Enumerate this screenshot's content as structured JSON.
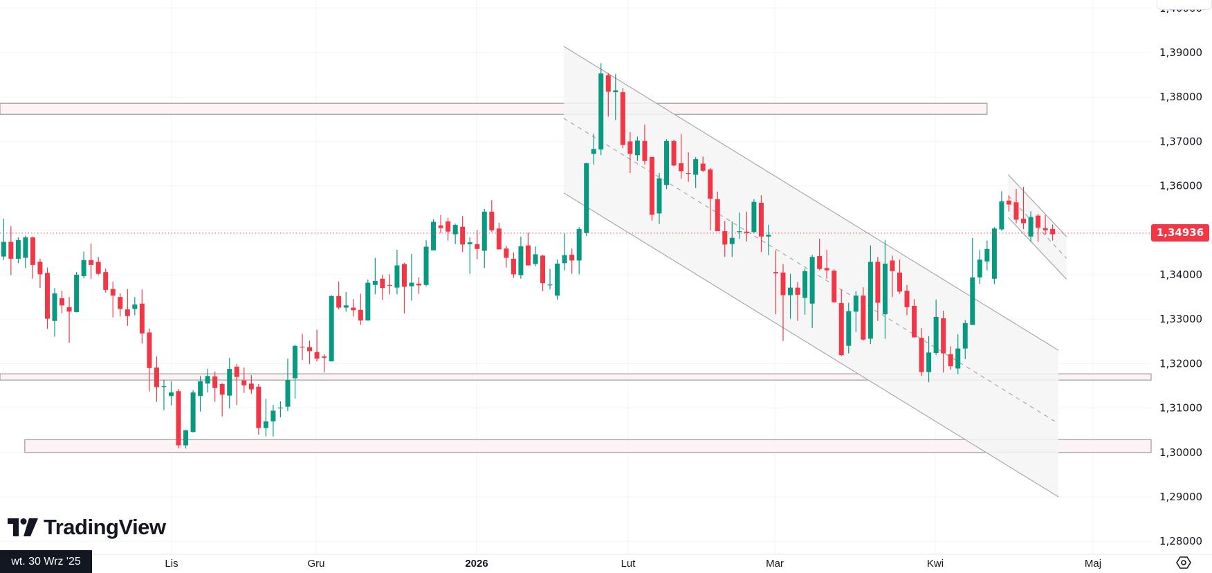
{
  "chart_data": {
    "type": "candlestick",
    "title": "",
    "colors": {
      "up": "#089981",
      "down": "#f23645",
      "grid": "#f0f3fa",
      "zone_fill": "#fdf0f1",
      "zone_border": "#9b9b9b",
      "channel_fill": "#f5f5f5",
      "channel_line": "#a8a8a8"
    },
    "ylim": [
      1.28,
      1.4
    ],
    "y_ticks": [
      "1,40000",
      "1,39000",
      "1,38000",
      "1,37000",
      "1,36000",
      "1,35000",
      "1,34000",
      "1,33000",
      "1,32000",
      "1,31000",
      "1,30000",
      "1,29000",
      "1,28000"
    ],
    "y_tick_values": [
      1.4,
      1.39,
      1.38,
      1.37,
      1.36,
      1.35,
      1.34,
      1.33,
      1.32,
      1.31,
      1.3,
      1.29,
      1.28
    ],
    "x_ticks": [
      "Lis",
      "Gru",
      "2026",
      "Lut",
      "Mar",
      "Kwi",
      "Maj"
    ],
    "crosshair_date": "wt. 30 Wrz '25",
    "last_price": 1.34936,
    "last_price_label": "1,34936",
    "candles_ohlc": [
      [
        1.3441,
        1.3526,
        1.3433,
        1.3474
      ],
      [
        1.3474,
        1.3509,
        1.3399,
        1.3436
      ],
      [
        1.3436,
        1.3484,
        1.3426,
        1.3478
      ],
      [
        1.3438,
        1.3488,
        1.3415,
        1.3484
      ],
      [
        1.3484,
        1.3486,
        1.3391,
        1.3422
      ],
      [
        1.3429,
        1.3436,
        1.337,
        1.3401
      ],
      [
        1.3404,
        1.3416,
        1.3278,
        1.3301
      ],
      [
        1.3296,
        1.337,
        1.3261,
        1.3358
      ],
      [
        1.3347,
        1.3364,
        1.3313,
        1.3331
      ],
      [
        1.3327,
        1.335,
        1.3247,
        1.3317
      ],
      [
        1.3316,
        1.3406,
        1.3315,
        1.34
      ],
      [
        1.3397,
        1.3452,
        1.3392,
        1.3433
      ],
      [
        1.3433,
        1.347,
        1.339,
        1.3422
      ],
      [
        1.3429,
        1.344,
        1.3399,
        1.3402
      ],
      [
        1.3406,
        1.3414,
        1.336,
        1.3366
      ],
      [
        1.3368,
        1.3384,
        1.3304,
        1.3353
      ],
      [
        1.335,
        1.3358,
        1.3306,
        1.3323
      ],
      [
        1.3322,
        1.3368,
        1.3285,
        1.3307
      ],
      [
        1.3323,
        1.335,
        1.3309,
        1.3333
      ],
      [
        1.3335,
        1.3367,
        1.3245,
        1.3268
      ],
      [
        1.327,
        1.3279,
        1.3137,
        1.319
      ],
      [
        1.3191,
        1.3216,
        1.3114,
        1.3147
      ],
      [
        1.3148,
        1.3163,
        1.3095,
        1.3149
      ],
      [
        1.3127,
        1.316,
        1.3106,
        1.3135
      ],
      [
        1.3138,
        1.3143,
        1.3009,
        1.3016
      ],
      [
        1.3016,
        1.3051,
        1.3009,
        1.305
      ],
      [
        1.3046,
        1.314,
        1.3045,
        1.3135
      ],
      [
        1.3127,
        1.3172,
        1.3092,
        1.316
      ],
      [
        1.3155,
        1.3188,
        1.3135,
        1.3172
      ],
      [
        1.3171,
        1.3182,
        1.3114,
        1.3145
      ],
      [
        1.3154,
        1.3156,
        1.3081,
        1.313
      ],
      [
        1.3128,
        1.3213,
        1.3099,
        1.3188
      ],
      [
        1.3193,
        1.3199,
        1.3107,
        1.317
      ],
      [
        1.3162,
        1.3191,
        1.3134,
        1.3151
      ],
      [
        1.3155,
        1.3174,
        1.3132,
        1.3142
      ],
      [
        1.3148,
        1.3154,
        1.304,
        1.3055
      ],
      [
        1.3055,
        1.3121,
        1.3036,
        1.307
      ],
      [
        1.307,
        1.3107,
        1.3036,
        1.3094
      ],
      [
        1.31,
        1.3115,
        1.3079,
        1.3101
      ],
      [
        1.3103,
        1.3211,
        1.3093,
        1.3163
      ],
      [
        1.3167,
        1.3242,
        1.3121,
        1.324
      ],
      [
        1.3238,
        1.3267,
        1.3208,
        1.3237
      ],
      [
        1.3237,
        1.3252,
        1.3199,
        1.3228
      ],
      [
        1.3226,
        1.3276,
        1.3205,
        1.3211
      ],
      [
        1.3216,
        1.3221,
        1.318,
        1.3213
      ],
      [
        1.3205,
        1.3354,
        1.3205,
        1.3352
      ],
      [
        1.3352,
        1.3385,
        1.3322,
        1.3326
      ],
      [
        1.3326,
        1.3361,
        1.3317,
        1.3331
      ],
      [
        1.3326,
        1.3345,
        1.3306,
        1.332
      ],
      [
        1.3321,
        1.3357,
        1.3287,
        1.3297
      ],
      [
        1.3297,
        1.3389,
        1.3297,
        1.3382
      ],
      [
        1.3377,
        1.3438,
        1.3356,
        1.3386
      ],
      [
        1.3391,
        1.34,
        1.3343,
        1.337
      ],
      [
        1.3377,
        1.3401,
        1.3356,
        1.3376
      ],
      [
        1.3371,
        1.3456,
        1.3356,
        1.3421
      ],
      [
        1.3424,
        1.3427,
        1.3313,
        1.3373
      ],
      [
        1.3374,
        1.3447,
        1.3342,
        1.3382
      ],
      [
        1.338,
        1.3394,
        1.3357,
        1.3376
      ],
      [
        1.3377,
        1.3478,
        1.3374,
        1.3463
      ],
      [
        1.3455,
        1.3525,
        1.3455,
        1.3519
      ],
      [
        1.3511,
        1.3534,
        1.3493,
        1.3505
      ],
      [
        1.352,
        1.3528,
        1.3477,
        1.3497
      ],
      [
        1.3491,
        1.3515,
        1.3469,
        1.3512
      ],
      [
        1.3508,
        1.3532,
        1.3451,
        1.3468
      ],
      [
        1.3469,
        1.3484,
        1.3402,
        1.3473
      ],
      [
        1.3469,
        1.3501,
        1.3435,
        1.3458
      ],
      [
        1.3454,
        1.3548,
        1.3415,
        1.3542
      ],
      [
        1.3542,
        1.3568,
        1.3496,
        1.35
      ],
      [
        1.3504,
        1.3517,
        1.3457,
        1.3457
      ],
      [
        1.3459,
        1.3465,
        1.3416,
        1.3438
      ],
      [
        1.3436,
        1.345,
        1.3393,
        1.3401
      ],
      [
        1.3399,
        1.3486,
        1.3391,
        1.3464
      ],
      [
        1.3466,
        1.3495,
        1.3421,
        1.3421
      ],
      [
        1.3424,
        1.3464,
        1.3419,
        1.3446
      ],
      [
        1.3443,
        1.3445,
        1.3363,
        1.3381
      ],
      [
        1.3377,
        1.3413,
        1.3367,
        1.3378
      ],
      [
        1.3353,
        1.3434,
        1.3344,
        1.3425
      ],
      [
        1.3426,
        1.3493,
        1.341,
        1.3444
      ],
      [
        1.3445,
        1.3459,
        1.3402,
        1.3432
      ],
      [
        1.3432,
        1.3507,
        1.3401,
        1.3503
      ],
      [
        1.3494,
        1.3652,
        1.3487,
        1.3651
      ],
      [
        1.3672,
        1.3717,
        1.3648,
        1.3683
      ],
      [
        1.3682,
        1.3876,
        1.3669,
        1.3853
      ],
      [
        1.3849,
        1.3854,
        1.3756,
        1.3812
      ],
      [
        1.3811,
        1.3852,
        1.3748,
        1.3815
      ],
      [
        1.3811,
        1.382,
        1.3685,
        1.3692
      ],
      [
        1.37,
        1.3721,
        1.3629,
        1.3672
      ],
      [
        1.3669,
        1.3711,
        1.3656,
        1.3702
      ],
      [
        1.3701,
        1.3738,
        1.3648,
        1.3656
      ],
      [
        1.3665,
        1.3665,
        1.3522,
        1.3535
      ],
      [
        1.3538,
        1.3629,
        1.3514,
        1.3617
      ],
      [
        1.3602,
        1.3705,
        1.3593,
        1.3701
      ],
      [
        1.3701,
        1.3704,
        1.3644,
        1.3646
      ],
      [
        1.3651,
        1.3717,
        1.3616,
        1.3633
      ],
      [
        1.3629,
        1.3676,
        1.3609,
        1.3628
      ],
      [
        1.3625,
        1.3665,
        1.3595,
        1.366
      ],
      [
        1.365,
        1.3666,
        1.3631,
        1.3634
      ],
      [
        1.3637,
        1.364,
        1.35,
        1.3571
      ],
      [
        1.357,
        1.3587,
        1.3498,
        1.3498
      ],
      [
        1.3498,
        1.3521,
        1.344,
        1.3468
      ],
      [
        1.3469,
        1.352,
        1.344,
        1.3483
      ],
      [
        1.3497,
        1.354,
        1.3481,
        1.3498
      ],
      [
        1.3497,
        1.3542,
        1.3475,
        1.3494
      ],
      [
        1.3496,
        1.357,
        1.3494,
        1.3564
      ],
      [
        1.3562,
        1.3579,
        1.3451,
        1.3486
      ],
      [
        1.3486,
        1.3512,
        1.3444,
        1.349
      ],
      [
        1.3406,
        1.3455,
        1.3311,
        1.3403
      ],
      [
        1.3405,
        1.3424,
        1.3251,
        1.3354
      ],
      [
        1.3354,
        1.3402,
        1.3301,
        1.3371
      ],
      [
        1.3371,
        1.3384,
        1.3296,
        1.3355
      ],
      [
        1.3348,
        1.3414,
        1.331,
        1.3408
      ],
      [
        1.3335,
        1.3445,
        1.328,
        1.344
      ],
      [
        1.3442,
        1.3481,
        1.341,
        1.3413
      ],
      [
        1.3415,
        1.3456,
        1.3391,
        1.341
      ],
      [
        1.3409,
        1.3412,
        1.3337,
        1.3338
      ],
      [
        1.3336,
        1.3367,
        1.3217,
        1.3219
      ],
      [
        1.324,
        1.3337,
        1.3223,
        1.3318
      ],
      [
        1.3317,
        1.3363,
        1.3271,
        1.3353
      ],
      [
        1.3353,
        1.3372,
        1.3252,
        1.3254
      ],
      [
        1.3256,
        1.3466,
        1.3244,
        1.3429
      ],
      [
        1.3429,
        1.344,
        1.3296,
        1.3337
      ],
      [
        1.3311,
        1.3478,
        1.3256,
        1.3425
      ],
      [
        1.3432,
        1.3443,
        1.335,
        1.3408
      ],
      [
        1.3405,
        1.3434,
        1.3357,
        1.3362
      ],
      [
        1.3364,
        1.3377,
        1.3309,
        1.3327
      ],
      [
        1.333,
        1.3345,
        1.3259,
        1.3259
      ],
      [
        1.3258,
        1.328,
        1.3172,
        1.3181
      ],
      [
        1.3181,
        1.3262,
        1.3158,
        1.3225
      ],
      [
        1.3224,
        1.3344,
        1.3219,
        1.3305
      ],
      [
        1.3302,
        1.3319,
        1.318,
        1.3223
      ],
      [
        1.3221,
        1.3239,
        1.3186,
        1.3194
      ],
      [
        1.3189,
        1.3266,
        1.3176,
        1.3234
      ],
      [
        1.3234,
        1.3298,
        1.321,
        1.3291
      ],
      [
        1.3287,
        1.3483,
        1.3287,
        1.3394
      ],
      [
        1.3394,
        1.3456,
        1.3379,
        1.3434
      ],
      [
        1.343,
        1.3477,
        1.341,
        1.3458
      ],
      [
        1.3391,
        1.3507,
        1.3379,
        1.3504
      ],
      [
        1.3502,
        1.3588,
        1.3499,
        1.3565
      ],
      [
        1.3567,
        1.3578,
        1.3542,
        1.3558
      ],
      [
        1.3563,
        1.3593,
        1.3516,
        1.3524
      ],
      [
        1.3526,
        1.3598,
        1.3503,
        1.3516
      ],
      [
        1.3486,
        1.3543,
        1.3474,
        1.353
      ],
      [
        1.3533,
        1.3537,
        1.3474,
        1.3506
      ],
      [
        1.3505,
        1.3534,
        1.349,
        1.35
      ],
      [
        1.3503,
        1.3513,
        1.3477,
        1.3491
      ]
    ],
    "zones": [
      {
        "name": "resistance-zone",
        "price_top": 1.3786,
        "price_bottom": 1.3761,
        "from_bar": -1,
        "to_bar": 135
      },
      {
        "name": "support-zone-1317",
        "price_top": 1.3177,
        "price_bottom": 1.3163,
        "from_bar": -1,
        "to_bar": null
      },
      {
        "name": "support-zone-1300",
        "price_top": 1.3029,
        "price_bottom": 1.3,
        "from_bar": 2.9,
        "to_bar": null
      }
    ],
    "channels": [
      {
        "name": "main-regression-channel",
        "from_bar": 76.9,
        "to_bar": 144.8,
        "upper": [
          1.3914,
          1.323
        ],
        "middle": [
          1.3752,
          1.3065
        ],
        "lower": [
          1.3584,
          1.29
        ]
      },
      {
        "name": "small-descending-channel",
        "from_bar": 137.9,
        "to_bar": 145.9,
        "upper": [
          1.3625,
          1.3486
        ],
        "middle": [
          1.3578,
          1.3437
        ],
        "lower": [
          1.3529,
          1.339
        ]
      }
    ]
  },
  "branding": {
    "logo_text": "TradingView"
  },
  "icons": {
    "settings": "settings-hexagon-icon"
  }
}
